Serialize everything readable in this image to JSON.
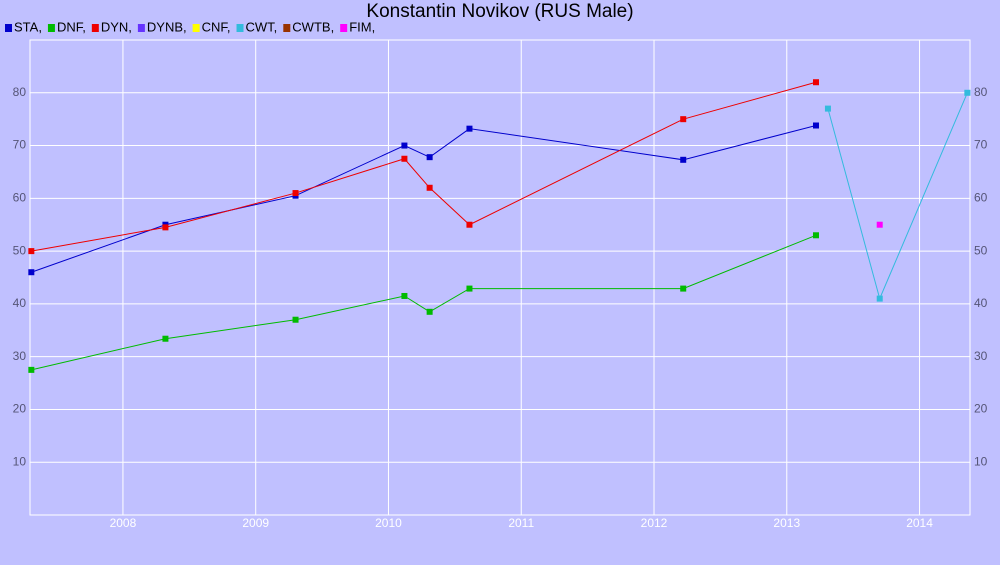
{
  "chart_data": {
    "type": "line",
    "title": "Konstantin Novikov (RUS Male)",
    "xlim": [
      2007.3,
      2014.38
    ],
    "xticks": [
      2008,
      2009,
      2010,
      2011,
      2012,
      2013,
      2014
    ],
    "ylim": [
      0,
      90
    ],
    "yticks": [
      10,
      20,
      30,
      40,
      50,
      60,
      70,
      80
    ],
    "grid": true,
    "series": [
      {
        "name": "STA,",
        "color": "#0000cc",
        "x": [
          2007.31,
          2008.32,
          2009.3,
          2010.12,
          2010.31,
          2010.61,
          2012.22,
          2013.22
        ],
        "values": [
          46,
          55,
          60.5,
          70,
          67.8,
          73.2,
          67.3,
          73.8
        ]
      },
      {
        "name": "DNF,",
        "color": "#00bb00",
        "x": [
          2007.31,
          2008.32,
          2009.3,
          2010.12,
          2010.31,
          2010.61,
          2012.22,
          2013.22
        ],
        "values": [
          27.5,
          33.4,
          37,
          41.5,
          38.5,
          42.9,
          42.9,
          53
        ]
      },
      {
        "name": "DYN,",
        "color": "#ee0000",
        "x": [
          2007.31,
          2008.32,
          2009.3,
          2010.12,
          2010.31,
          2010.61,
          2012.22,
          2013.22
        ],
        "values": [
          50,
          54.5,
          61,
          67.5,
          62,
          55,
          75,
          82
        ]
      },
      {
        "name": "DYNB,",
        "color": "#6633ff",
        "x": [],
        "values": []
      },
      {
        "name": "CNF,",
        "color": "#ffff00",
        "x": [],
        "values": []
      },
      {
        "name": "CWT,",
        "color": "#33bbdd",
        "x": [
          2013.31,
          2013.7,
          2014.36
        ],
        "values": [
          77,
          41,
          80
        ]
      },
      {
        "name": "CWTB,",
        "color": "#993300",
        "x": [],
        "values": []
      },
      {
        "name": "FIM,",
        "color": "#ff00ff",
        "x": [
          2013.7
        ],
        "values": [
          55
        ]
      }
    ]
  }
}
